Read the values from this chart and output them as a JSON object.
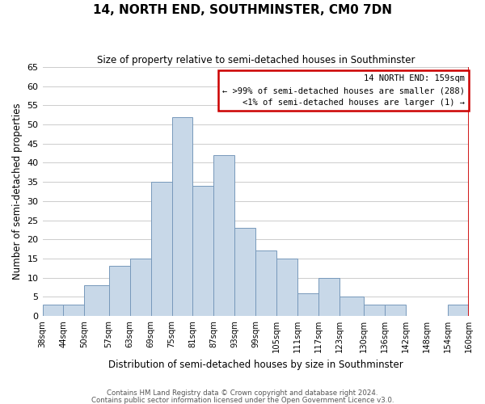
{
  "title": "14, NORTH END, SOUTHMINSTER, CM0 7DN",
  "subtitle": "Size of property relative to semi-detached houses in Southminster",
  "xlabel": "Distribution of semi-detached houses by size in Southminster",
  "ylabel": "Number of semi-detached properties",
  "bin_labels": [
    "38sqm",
    "44sqm",
    "50sqm",
    "57sqm",
    "63sqm",
    "69sqm",
    "75sqm",
    "81sqm",
    "87sqm",
    "93sqm",
    "99sqm",
    "105sqm",
    "111sqm",
    "117sqm",
    "123sqm",
    "130sqm",
    "136sqm",
    "142sqm",
    "148sqm",
    "154sqm",
    "160sqm"
  ],
  "bin_edges": [
    38,
    44,
    50,
    57,
    63,
    69,
    75,
    81,
    87,
    93,
    99,
    105,
    111,
    117,
    123,
    130,
    136,
    142,
    148,
    154,
    160
  ],
  "bar_heights": [
    3,
    3,
    8,
    13,
    15,
    35,
    52,
    34,
    42,
    23,
    17,
    15,
    6,
    10,
    5,
    3,
    3,
    0,
    0,
    3
  ],
  "bar_color": "#c8d8e8",
  "bar_edge_color": "#7799bb",
  "red_line_x": 160,
  "ylim": [
    0,
    65
  ],
  "yticks": [
    0,
    5,
    10,
    15,
    20,
    25,
    30,
    35,
    40,
    45,
    50,
    55,
    60,
    65
  ],
  "legend_title": "14 NORTH END: 159sqm",
  "legend_line1": "← >99% of semi-detached houses are smaller (288)",
  "legend_line2": "<1% of semi-detached houses are larger (1) →",
  "footnote1": "Contains HM Land Registry data © Crown copyright and database right 2024.",
  "footnote2": "Contains public sector information licensed under the Open Government Licence v3.0.",
  "red_border_color": "#cc0000",
  "background_color": "#ffffff"
}
